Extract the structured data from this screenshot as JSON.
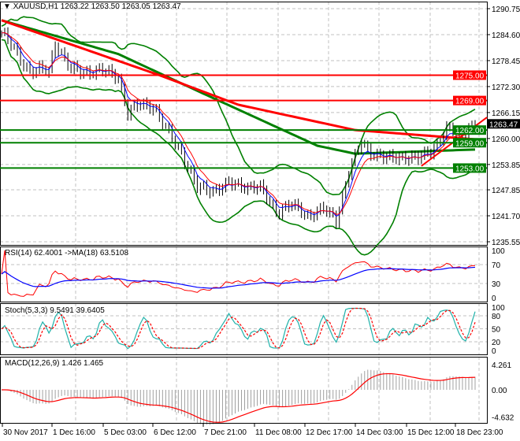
{
  "header": {
    "symbol": "XAUUSD,H1",
    "ohlc": "1263.22 1263.50 1263.05 1263.47"
  },
  "colors": {
    "red": "#ff0000",
    "green": "#008000",
    "blue": "#0000ff",
    "teal": "#20b2aa",
    "grid": "#c0c0c0",
    "hist": "#a0a0a0"
  },
  "chart_data": [
    {
      "type": "line",
      "title": "XAUUSD,H1",
      "ylim": [
        1235.55,
        1290.75
      ],
      "y_ticks": [
        "1290.75",
        "1284.60",
        "1278.45",
        "1272.30",
        "1266.15",
        "1260.00",
        "1253.85",
        "1247.85",
        "1241.70",
        "1235.55"
      ],
      "x_ticks": [
        "30 Nov 2017",
        "1 Dec 16:00",
        "5 Dec 03:00",
        "6 Dec 12:00",
        "7 Dec 21:00",
        "11 Dec 08:00",
        "12 Dec 17:00",
        "14 Dec 03:00",
        "15 Dec 12:00",
        "18 Dec 23:00"
      ],
      "close_anchors": [
        [
          0,
          1285
        ],
        [
          5,
          1280
        ],
        [
          9,
          1276
        ],
        [
          15,
          1276
        ],
        [
          17,
          1283
        ],
        [
          22,
          1276
        ],
        [
          30,
          1276
        ],
        [
          37,
          1275
        ],
        [
          40,
          1266
        ],
        [
          44,
          1268
        ],
        [
          48,
          1268
        ],
        [
          52,
          1262
        ],
        [
          57,
          1257
        ],
        [
          62,
          1248
        ],
        [
          67,
          1248
        ],
        [
          72,
          1249
        ],
        [
          77,
          1249
        ],
        [
          82,
          1248
        ],
        [
          87,
          1243
        ],
        [
          92,
          1244
        ],
        [
          97,
          1242
        ],
        [
          102,
          1243
        ],
        [
          106,
          1241
        ],
        [
          110,
          1252
        ],
        [
          114,
          1259
        ],
        [
          117,
          1257
        ],
        [
          122,
          1255
        ],
        [
          127,
          1256
        ],
        [
          132,
          1255
        ],
        [
          137,
          1258
        ],
        [
          141,
          1262
        ],
        [
          145,
          1261
        ],
        [
          149,
          1263.5
        ],
        [
          150,
          1263.47
        ]
      ],
      "ma_red": [
        [
          0,
          1288
        ],
        [
          50,
          1275
        ],
        [
          75,
          1268
        ],
        [
          112,
          1262
        ],
        [
          150,
          1259.8
        ]
      ],
      "ma_green": [
        [
          0,
          1288
        ],
        [
          37,
          1280
        ],
        [
          62,
          1271.3
        ],
        [
          100,
          1258.3
        ],
        [
          112,
          1256.4
        ],
        [
          150,
          1257.4
        ]
      ],
      "hlines": [
        {
          "value": 1275.0,
          "label": "1275.00",
          "color": "red"
        },
        {
          "value": 1269.0,
          "label": "1269.00",
          "color": "red"
        },
        {
          "value": 1262.0,
          "label": "1262.00",
          "color": "green"
        },
        {
          "value": 1259.0,
          "label": "1259.00",
          "color": "green"
        },
        {
          "value": 1253.0,
          "label": "1253.00",
          "color": "green"
        }
      ],
      "current_price": "1263.47",
      "trendline": [
        [
          133,
          1253.5
        ],
        [
          154,
          1265
        ]
      ]
    },
    {
      "type": "line",
      "title": "RSI(14) 62.4001  ->MA(18) 63.5108",
      "ylim": [
        0,
        100
      ],
      "y_ticks": [
        "100",
        "70",
        "30",
        "0"
      ],
      "levels": [
        70,
        30
      ]
    },
    {
      "type": "line",
      "title": "Stoch(5,3,3) 9.5491 39.6405",
      "ylim": [
        0,
        100
      ],
      "y_ticks": [
        "100",
        "80",
        "50",
        "20",
        "0"
      ],
      "levels": [
        80,
        50,
        20
      ]
    },
    {
      "type": "bar",
      "title": "MACD(12,26,9) 1.426 1.465",
      "ylim": [
        -4.632,
        4.261
      ],
      "y_ticks": [
        "4.261",
        "0.00",
        "-4.632"
      ]
    }
  ]
}
